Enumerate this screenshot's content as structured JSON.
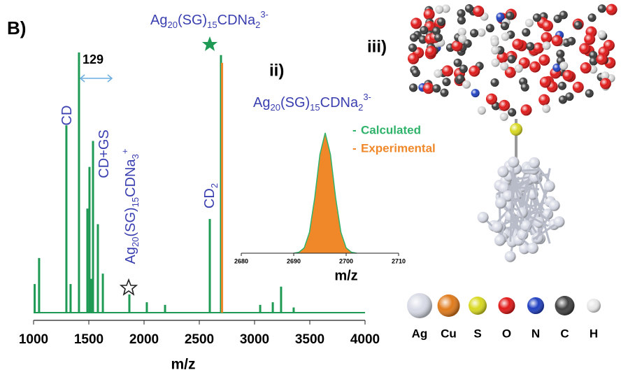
{
  "chart_data": [
    {
      "type": "stick",
      "panel_label": "B)",
      "xlabel": "m/z",
      "xlim": [
        1000,
        4000
      ],
      "xticks": [
        1000,
        1500,
        2000,
        2500,
        3000,
        3500,
        4000
      ],
      "ylim": [
        0,
        100
      ],
      "series": [
        {
          "color": "#1f9a55",
          "x": [
            1010,
            1050,
            1297,
            1335,
            1411,
            1487,
            1506,
            1519,
            1538,
            1582,
            1627,
            1867,
            2025,
            2190,
            2595,
            2696,
            3051,
            3165,
            3240,
            3354
          ],
          "values": [
            11,
            21,
            72,
            11,
            100,
            40,
            56,
            13,
            66,
            34,
            15,
            7,
            4,
            3,
            36,
            99,
            3,
            4,
            10,
            2
          ]
        },
        {
          "color": "#f0882a",
          "x": [
            2706
          ],
          "values": [
            96
          ]
        }
      ],
      "annotations": [
        [
          {
            "text": "Ag"
          },
          {
            "sub": "20"
          },
          {
            "text": "(SG)"
          },
          {
            "sub": "15"
          },
          {
            "text": "CDNa"
          },
          {
            "sub": "2"
          },
          {
            "sup": "3-"
          }
        ],
        [
          {
            "text": "129"
          }
        ],
        [
          {
            "text": "CD"
          }
        ],
        [
          {
            "text": "CD+GS"
          }
        ],
        [
          {
            "text": "Ag"
          },
          {
            "sub": "20"
          },
          {
            "text": "(SG)"
          },
          {
            "sub": "15"
          },
          {
            "text": "CDNa"
          },
          {
            "sub": "3"
          },
          {
            "sup": "+"
          }
        ],
        [
          {
            "text": "CD"
          },
          {
            "sub": "2"
          }
        ]
      ]
    },
    {
      "type": "area",
      "panel_label": "ii)",
      "title": [
        {
          "text": "Ag"
        },
        {
          "sub": "20"
        },
        {
          "text": "(SG)"
        },
        {
          "sub": "15"
        },
        {
          "text": "CDNa"
        },
        {
          "sub": "2"
        },
        {
          "sup": "3-"
        }
      ],
      "xlabel": "m/z",
      "xlim": [
        2680,
        2710
      ],
      "xticks": [
        2680,
        2690,
        2700,
        2710
      ],
      "ylim": [
        0,
        100
      ],
      "series": [
        {
          "name": "Experimental",
          "color": "#f0882a",
          "x": [
            2690,
            2691,
            2692,
            2693,
            2694,
            2695,
            2696,
            2697,
            2698,
            2699,
            2700,
            2701,
            2702
          ],
          "values": [
            0,
            0.8,
            4.4,
            17.3,
            45.8,
            82.2,
            100,
            82.2,
            45.8,
            17.3,
            4.4,
            0.8,
            0
          ]
        },
        {
          "name": "Calculated",
          "color": "#2fb36a",
          "x": [
            2690,
            2691,
            2692,
            2693,
            2694,
            2695,
            2696,
            2697,
            2698,
            2699,
            2700,
            2701,
            2702
          ],
          "values": [
            0,
            0.8,
            4.4,
            17.3,
            45.8,
            82.2,
            100,
            82.2,
            45.8,
            17.3,
            4.4,
            0.8,
            0
          ]
        }
      ]
    }
  ],
  "structure": {
    "panel_label": "iii)",
    "elements": [
      {
        "symbol": "Ag",
        "color": "#d8dbe6"
      },
      {
        "symbol": "Cu",
        "color": "#e07a1a"
      },
      {
        "symbol": "S",
        "color": "#d8d820"
      },
      {
        "symbol": "O",
        "color": "#e01818"
      },
      {
        "symbol": "N",
        "color": "#2040c0"
      },
      {
        "symbol": "C",
        "color": "#404040"
      },
      {
        "symbol": "H",
        "color": "#e8e8e8"
      }
    ]
  }
}
